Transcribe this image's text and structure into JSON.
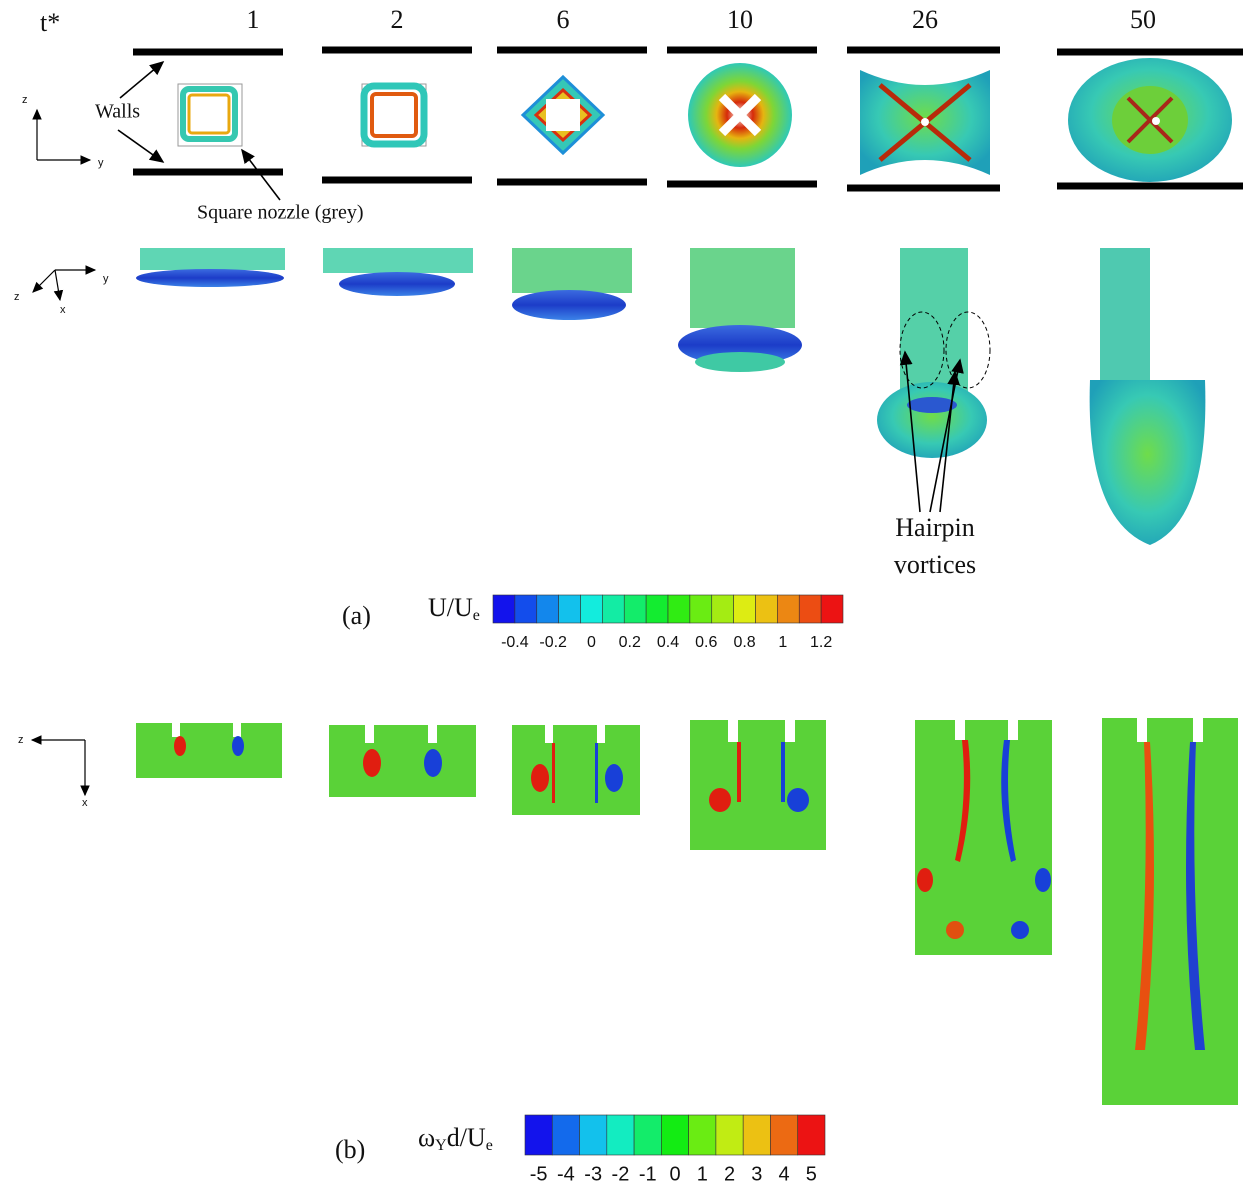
{
  "header": {
    "time_symbol": "t*",
    "times": [
      1,
      2,
      6,
      10,
      26,
      50
    ]
  },
  "axes_top": [
    "z",
    "y"
  ],
  "axes_middle": [
    "z",
    "x",
    "y"
  ],
  "axes_bottom": [
    "z",
    "x"
  ],
  "annotations": {
    "walls": "Walls",
    "nozzle": "Square nozzle (grey)",
    "hairpin": [
      "Hairpin",
      "vortices"
    ]
  },
  "colorbar_a": {
    "panel": "(a)",
    "label": [
      {
        "text": "U/U"
      },
      {
        "text": "e",
        "sub": true
      }
    ],
    "ticks": [
      -0.4,
      -0.2,
      0,
      0.2,
      0.4,
      0.6,
      0.8,
      1,
      1.2
    ]
  },
  "colorbar_b": {
    "panel": "(b)",
    "label": [
      {
        "text": "ω"
      },
      {
        "text": "Y",
        "sub": true
      },
      {
        "text": "d/U"
      },
      {
        "text": "e",
        "sub": true
      }
    ],
    "ticks": [
      -5,
      -4,
      -3,
      -2,
      -1,
      0,
      1,
      2,
      3,
      4,
      5
    ]
  }
}
